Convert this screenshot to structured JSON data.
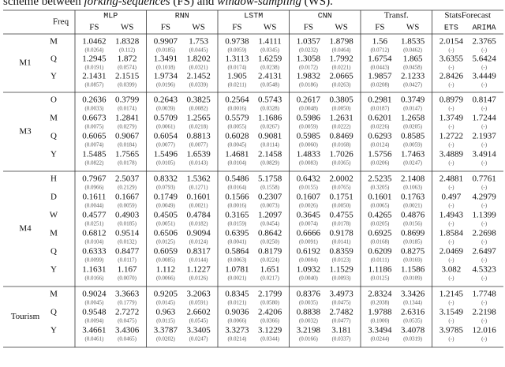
{
  "caption": [
    "scheme between ",
    "forking-sequences",
    " (FS) and ",
    "window-sampling",
    " (WS)."
  ],
  "header": {
    "freq": "Freq",
    "models": [
      {
        "name": "MLP",
        "cols": [
          "FS",
          "WS"
        ]
      },
      {
        "name": "RNN",
        "cols": [
          "FS",
          "WS"
        ]
      },
      {
        "name": "LSTM",
        "cols": [
          "FS",
          "WS"
        ]
      },
      {
        "name": "CNN",
        "cols": [
          "FS",
          "WS"
        ]
      },
      {
        "name": "Transf.",
        "cols": [
          "FS",
          "WS"
        ]
      },
      {
        "name": "StatsForecast",
        "cols": [
          "ETS",
          "ARIMA"
        ]
      }
    ]
  },
  "groups": [
    {
      "name": "M1",
      "rows": [
        {
          "freq": "M",
          "values": [
            "1.0462",
            "1.8328",
            "0.9907",
            "1.753",
            "0.9738",
            "1.4111",
            "1.0357",
            "1.8798",
            "1.56",
            "1.8535",
            "2.0154",
            "2.3765"
          ],
          "sds": [
            "(0.0264)",
            "(0.112)",
            "(0.0185)",
            "(0.0445)",
            "(0.0059)",
            "(0.0345)",
            "(0.0232)",
            "(0.0464)",
            "(0.0712)",
            "(0.0462)",
            "(-)",
            "(-)"
          ]
        },
        {
          "freq": "Q",
          "values": [
            "1.2945",
            "1.872",
            "1.3491",
            "1.8202",
            "1.3113",
            "1.6259",
            "1.3058",
            "1.7992",
            "1.6754",
            "1.865",
            "3.6355",
            "5.6424"
          ],
          "sds": [
            "(0.0191)",
            "(0.0574)",
            "(0.1018)",
            "(0.0321)",
            "(0.0174)",
            "(0.0238)",
            "(0.0172)",
            "(0.0221)",
            "(0.0443)",
            "(0.0458)",
            "(-)",
            "(-)"
          ]
        },
        {
          "freq": "Y",
          "values": [
            "2.1431",
            "2.1515",
            "1.9734",
            "2.1452",
            "1.905",
            "2.4131",
            "1.9832",
            "2.0665",
            "1.9857",
            "2.1233",
            "2.8426",
            "3.4449"
          ],
          "sds": [
            "(0.0857)",
            "(0.0399)",
            "(0.0196)",
            "(0.0339)",
            "(0.0211)",
            "(0.0548)",
            "(0.0186)",
            "(0.0263)",
            "(0.0208)",
            "(0.0427)",
            "(-)",
            "(-)"
          ]
        }
      ]
    },
    {
      "name": "M3",
      "rows": [
        {
          "freq": "O",
          "values": [
            "0.2636",
            "0.3799",
            "0.2643",
            "0.3825",
            "0.2564",
            "0.5743",
            "0.2617",
            "0.3805",
            "0.2981",
            "0.3749",
            "0.8979",
            "0.8147"
          ],
          "sds": [
            "(0.0033)",
            "(0.0174)",
            "(0.0039)",
            "(0.0082)",
            "(0.0016)",
            "(0.0328)",
            "(0.0048)",
            "(0.0050)",
            "(0.0187)",
            "(0.0147)",
            "(-)",
            "(-)"
          ]
        },
        {
          "freq": "M",
          "values": [
            "0.6673",
            "1.2841",
            "0.5709",
            "1.2565",
            "0.5579",
            "1.1686",
            "0.5986",
            "1.2631",
            "0.6201",
            "1.2658",
            "1.3749",
            "1.7244"
          ],
          "sds": [
            "(0.0075)",
            "(0.0279)",
            "(0.0061)",
            "(0.0218)",
            "(0.0055)",
            "(0.0267)",
            "(0.0059)",
            "(0.0222)",
            "(0.0226)",
            "(0.0205)",
            "(-)",
            "(-)"
          ]
        },
        {
          "freq": "Q",
          "values": [
            "0.6065",
            "0.9067",
            "0.6054",
            "0.8813",
            "0.6028",
            "0.9081",
            "0.5985",
            "0.8469",
            "0.6293",
            "0.8585",
            "1.2722",
            "2.1937"
          ],
          "sds": [
            "(0.0074)",
            "(0.0184)",
            "(0.0077)",
            "(0.0077)",
            "(0.0045)",
            "(0.0114)",
            "(0.0060)",
            "(0.0168)",
            "(0.0124)",
            "(0.0059)",
            "(-)",
            "(-)"
          ]
        },
        {
          "freq": "Y",
          "values": [
            "1.5485",
            "1.7565",
            "1.5496",
            "1.6539",
            "1.4681",
            "2.1458",
            "1.4833",
            "1.7026",
            "1.5756",
            "1.7463",
            "3.4889",
            "3.4914"
          ],
          "sds": [
            "(0.0822)",
            "(0.0178)",
            "(0.0105)",
            "(0.0143)",
            "(0.0104)",
            "(0.0829)",
            "(0.0083)",
            "(0.0365)",
            "(0.0206)",
            "(0.0247)",
            "(-)",
            "(-)"
          ]
        }
      ]
    },
    {
      "name": "M4",
      "rows": [
        {
          "freq": "H",
          "values": [
            "0.7967",
            "2.5037",
            "0.8332",
            "1.5362",
            "0.5486",
            "5.1758",
            "0.6432",
            "2.0002",
            "2.5235",
            "2.1408",
            "2.4881",
            "0.7761"
          ],
          "sds": [
            "(0.0966)",
            "(0.2129)",
            "(0.0793)",
            "(0.1271)",
            "(0.0164)",
            "(0.1558)",
            "(0.0155)",
            "(0.0765)",
            "(0.3205)",
            "(0.1063)",
            "(-)",
            "(-)"
          ]
        },
        {
          "freq": "D",
          "values": [
            "0.1611",
            "0.1667",
            "0.1749",
            "0.1601",
            "0.1566",
            "0.2307",
            "0.1607",
            "0.1751",
            "0.1601",
            "0.1763",
            "0.497",
            "4.2979"
          ],
          "sds": [
            "(0.0044)",
            "(0.0059)",
            "(0.0049)",
            "(0.0021)",
            "(0.0016)",
            "(0.0073)",
            "(0.0026)",
            "(0.0050)",
            "(0.0065)",
            "(0.0021)",
            "(-)",
            "(-)"
          ]
        },
        {
          "freq": "W",
          "values": [
            "0.4577",
            "0.4903",
            "0.4505",
            "0.4784",
            "0.3165",
            "1.2097",
            "0.3645",
            "0.4755",
            "0.4265",
            "0.4876",
            "1.4943",
            "1.1399"
          ],
          "sds": [
            "(0.0251)",
            "(0.0185)",
            "(0.0051)",
            "(0.0182)",
            "(0.0159)",
            "(0.0454)",
            "(0.0074)",
            "(0.0178)",
            "(0.0205)",
            "(0.0156)",
            "(-)",
            "(-)"
          ]
        },
        {
          "freq": "M",
          "values": [
            "0.6812",
            "0.9514",
            "0.6506",
            "0.9094",
            "0.6395",
            "0.8642",
            "0.6666",
            "0.9178",
            "0.6925",
            "0.8699",
            "1.8584",
            "2.2698"
          ],
          "sds": [
            "(0.0104)",
            "(0.0132)",
            "(0.0125)",
            "(0.0124)",
            "(0.0041)",
            "(0.0250)",
            "(0.0091)",
            "(0.0141)",
            "(0.0168)",
            "(0.0185)",
            "(-)",
            "(-)"
          ]
        },
        {
          "freq": "Q",
          "values": [
            "0.6333",
            "0.8477",
            "0.6059",
            "0.8317",
            "0.5864",
            "0.8179",
            "0.6192",
            "0.8359",
            "0.6209",
            "0.8275",
            "2.0469",
            "2.6497"
          ],
          "sds": [
            "(0.0099)",
            "(0.0117)",
            "(0.0085)",
            "(0.0144)",
            "(0.0063)",
            "(0.0224)",
            "(0.0084)",
            "(0.0123)",
            "(0.0111)",
            "(0.0169)",
            "(-)",
            "(-)"
          ]
        },
        {
          "freq": "Y",
          "values": [
            "1.1631",
            "1.167",
            "1.112",
            "1.1227",
            "1.0781",
            "1.651",
            "1.0932",
            "1.1529",
            "1.1186",
            "1.1586",
            "3.082",
            "4.5323"
          ],
          "sds": [
            "(0.0166)",
            "(0.0070)",
            "(0.0066)",
            "(0.0126)",
            "(0.0021)",
            "(0.0217)",
            "(0.0040)",
            "(0.0093)",
            "(0.0125)",
            "(0.0109)",
            "(-)",
            "(-)"
          ]
        }
      ]
    },
    {
      "name": "Tourism",
      "rows": [
        {
          "freq": "M",
          "values": [
            "0.9024",
            "3.3663",
            "0.9205",
            "3.2063",
            "0.8345",
            "2.1799",
            "0.8376",
            "3.4973",
            "2.8324",
            "3.3426",
            "1.2145",
            "1.7748"
          ],
          "sds": [
            "(0.0045)",
            "(0.1779)",
            "(0.0145)",
            "(0.0591)",
            "(0.0121)",
            "(0.0580)",
            "(0.0035)",
            "(0.0475)",
            "(0.2038)",
            "(0.1344)",
            "(-)",
            "(-)"
          ]
        },
        {
          "freq": "Q",
          "values": [
            "0.9548",
            "2.7272",
            "0.963",
            "2.6602",
            "0.9036",
            "2.4206",
            "0.8838",
            "2.7482",
            "1.9788",
            "2.6316",
            "3.1549",
            "2.2198"
          ],
          "sds": [
            "(0.0094)",
            "(0.0475)",
            "(0.0115)",
            "(0.0545)",
            "(0.0066)",
            "(0.0366)",
            "(0.0032)",
            "(0.0477)",
            "(0.1000)",
            "(0.0535)",
            "(-)",
            "(-)"
          ]
        },
        {
          "freq": "Y",
          "values": [
            "3.4661",
            "3.4306",
            "3.3787",
            "3.3405",
            "3.3273",
            "3.1229",
            "3.2198",
            "3.181",
            "3.3494",
            "3.4078",
            "3.9785",
            "12.016"
          ],
          "sds": [
            "(0.0461)",
            "(0.0465)",
            "(0.0202)",
            "(0.0247)",
            "(0.0214)",
            "(0.0344)",
            "(0.0166)",
            "(0.0337)",
            "(0.0244)",
            "(0.0319)",
            "(-)",
            "(-)"
          ]
        }
      ]
    }
  ]
}
